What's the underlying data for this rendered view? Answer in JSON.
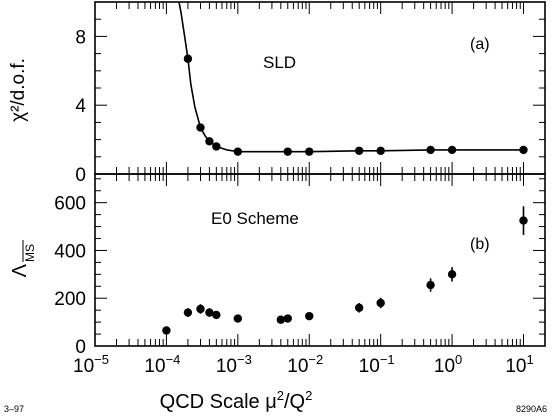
{
  "chart_data": [
    {
      "type": "line",
      "panel_label": "(a)",
      "annotation": "SLD",
      "ylabel": "χ²/d.o.f.",
      "y_ticks": [
        "0",
        "4",
        "8"
      ],
      "ylim": [
        0,
        10
      ],
      "x_scale": "log",
      "xlim": [
        1e-05,
        20
      ],
      "series": [
        {
          "x": [
            0.0002,
            0.0003,
            0.0004,
            0.0005,
            0.001,
            0.005,
            0.01,
            0.05,
            0.1,
            0.5,
            1,
            10
          ],
          "y": [
            6.7,
            2.7,
            1.9,
            1.6,
            1.3,
            1.3,
            1.3,
            1.35,
            1.35,
            1.4,
            1.4,
            1.4
          ]
        }
      ],
      "curve": {
        "x": [
          0.00015,
          0.00016,
          0.00018,
          0.0002,
          0.00022,
          0.00025,
          0.0003,
          0.00035,
          0.0004,
          0.0005,
          0.0007,
          0.001,
          0.005,
          0.01,
          0.05,
          0.1,
          0.5,
          1,
          10
        ],
        "y": [
          10,
          9.4,
          8.0,
          6.7,
          5.2,
          3.9,
          2.7,
          2.2,
          1.9,
          1.6,
          1.4,
          1.3,
          1.3,
          1.3,
          1.35,
          1.35,
          1.4,
          1.4,
          1.4
        ]
      }
    },
    {
      "type": "scatter",
      "panel_label": "(b)",
      "annotation": "E0 Scheme",
      "ylabel": "Λ",
      "ylabel_subscript": "MS",
      "y_ticks": [
        "0",
        "200",
        "400",
        "600"
      ],
      "ylim": [
        0,
        720
      ],
      "x_scale": "log",
      "xlim": [
        1e-05,
        20
      ],
      "x_ticks": [
        {
          "base": "10",
          "exp": "−5"
        },
        {
          "base": "10",
          "exp": "−4"
        },
        {
          "base": "10",
          "exp": "−3"
        },
        {
          "base": "10",
          "exp": "−2"
        },
        {
          "base": "10",
          "exp": "−1"
        },
        {
          "base": "10",
          "exp": "0"
        },
        {
          "base": "10",
          "exp": "1"
        }
      ],
      "xlabel": "QCD Scale μ",
      "xlabel_sup1": "2",
      "xlabel_mid": "/Q",
      "xlabel_sup2": "2",
      "series": [
        {
          "x": [
            0.0001,
            0.0002,
            0.0003,
            0.0004,
            0.0005,
            0.001,
            0.004,
            0.005,
            0.01,
            0.05,
            0.1,
            0.5,
            1,
            10
          ],
          "y": [
            65,
            140,
            155,
            140,
            130,
            115,
            110,
            115,
            125,
            160,
            180,
            255,
            300,
            525
          ],
          "err": [
            8,
            18,
            20,
            18,
            15,
            12,
            12,
            12,
            12,
            20,
            22,
            28,
            30,
            60
          ]
        }
      ]
    }
  ],
  "footer": {
    "left": "3–97",
    "right": "8290A6"
  }
}
